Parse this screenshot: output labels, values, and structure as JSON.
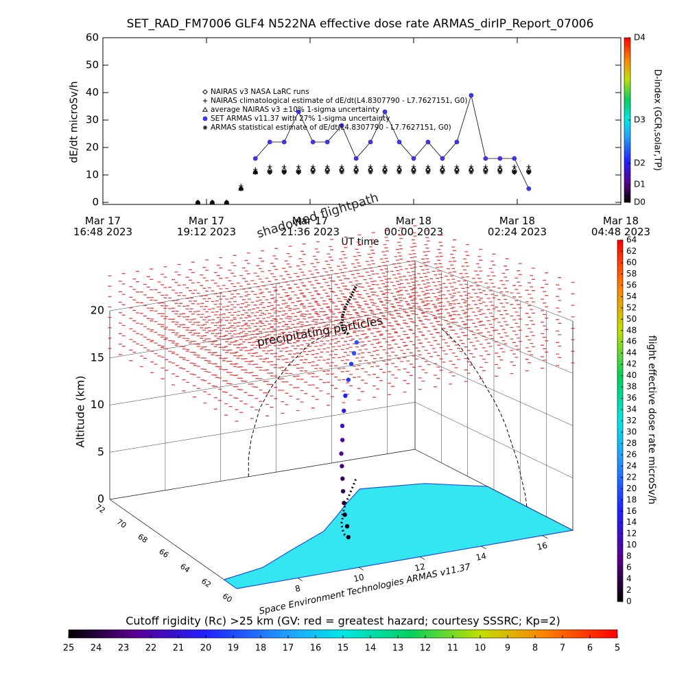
{
  "chart_data": [
    {
      "type": "scatter",
      "title": "SET_RAD_FM7006  GLF4 N522NA effective dose rate ARMAS_dirIP_Report_07006",
      "ylabel": "dE/dt microSv/h",
      "xlabel": "UT time",
      "x": [
        "2023-03-17T19:00",
        "2023-03-17T19:20",
        "2023-03-17T19:40",
        "2023-03-17T20:00",
        "2023-03-17T20:20",
        "2023-03-17T20:40",
        "2023-03-17T21:00",
        "2023-03-17T21:20",
        "2023-03-17T21:40",
        "2023-03-17T22:00",
        "2023-03-17T22:20",
        "2023-03-17T22:40",
        "2023-03-17T23:00",
        "2023-03-17T23:20",
        "2023-03-17T23:40",
        "2023-03-18T00:00",
        "2023-03-18T00:20",
        "2023-03-18T00:40",
        "2023-03-18T01:00",
        "2023-03-18T01:20",
        "2023-03-18T01:40",
        "2023-03-18T02:00",
        "2023-03-18T02:20",
        "2023-03-18T02:40"
      ],
      "xlim": [
        "2023-03-17T16:48",
        "2023-03-18T04:48"
      ],
      "xticks": [
        {
          "value": "2023-03-17T16:48",
          "label": "Mar 17\n16:48 2023"
        },
        {
          "value": "2023-03-17T19:12",
          "label": "Mar 17\n19:12 2023"
        },
        {
          "value": "2023-03-17T21:36",
          "label": "Mar 17\n21:36 2023"
        },
        {
          "value": "2023-03-18T00:00",
          "label": "Mar 18\n00:00 2023"
        },
        {
          "value": "2023-03-18T02:24",
          "label": "Mar 18\n02:24 2023"
        },
        {
          "value": "2023-03-18T04:48",
          "label": "Mar 18\n04:48 2023"
        }
      ],
      "ylim": [
        0,
        60
      ],
      "yticks": [
        0,
        10,
        20,
        30,
        40,
        50,
        60
      ],
      "series": [
        {
          "name": "NAIRAS v3 NASA LaRC runs",
          "color": "#000000",
          "marker": "diamond",
          "values": [
            0,
            0,
            0,
            5,
            11,
            11,
            11,
            11,
            12,
            12,
            12,
            12,
            12,
            12,
            12,
            12,
            12,
            12,
            12,
            12,
            12,
            12,
            11,
            11
          ]
        },
        {
          "name": "NAIRAS climatological estimate of dE/dt(L4.8307790 - L7.7627151, G0)",
          "color": "#000000",
          "marker": "plus",
          "values": [
            0,
            0,
            0,
            6,
            12,
            13,
            13,
            13,
            13,
            13,
            13,
            13,
            13,
            13,
            13,
            13,
            13,
            13,
            13,
            13,
            13,
            13,
            13,
            13
          ]
        },
        {
          "name": "average NAIRAS v3 ±10% 1-sigma uncertainty",
          "color": "#000000",
          "marker": "triangle",
          "values": [
            0,
            0,
            0,
            5,
            11,
            12,
            12,
            12,
            12,
            12,
            12,
            12,
            12,
            12,
            12,
            12,
            12,
            12,
            12,
            12,
            12,
            12,
            12,
            12
          ]
        },
        {
          "name": "SET ARMAS v11.37 with 27% 1-sigma uncertainty",
          "color": "#2c3cff",
          "marker": "circle",
          "values": [
            null,
            null,
            null,
            null,
            16,
            22,
            22,
            33,
            22,
            22,
            28,
            16,
            22,
            33,
            22,
            16,
            22,
            16,
            22,
            39,
            16,
            16,
            16,
            5
          ]
        },
        {
          "name": "ARMAS statistical estimate of dE/dt(L4.8307790 - L7.7627151, G0)",
          "color": "#000000",
          "marker": "asterisk",
          "values": [
            0,
            0,
            0,
            5,
            11,
            11,
            11,
            11,
            11,
            11,
            11,
            11,
            11,
            11,
            11,
            11,
            11,
            11,
            11,
            11,
            11,
            11,
            11,
            11
          ]
        }
      ],
      "dindex_colorbar": {
        "label": "D-index (GCR,solar,TP)",
        "lim": [
          0,
          4
        ],
        "ticks": [
          {
            "value": 0,
            "label": "D0"
          },
          {
            "value": 0.43,
            "label": "D1"
          },
          {
            "value": 0.95,
            "label": "D2"
          },
          {
            "value": 2,
            "label": "D3"
          },
          {
            "value": 4,
            "label": "D4"
          }
        ]
      }
    },
    {
      "type": "scatter3d",
      "zlabel": "Altitude (km)",
      "zlim": [
        0,
        20
      ],
      "zticks": [
        0,
        5,
        10,
        15,
        20
      ],
      "xlim": [
        6,
        17
      ],
      "xticks": [
        8,
        10,
        12,
        14,
        16
      ],
      "ylim": [
        60,
        72
      ],
      "yticks": [
        60,
        62,
        64,
        66,
        68,
        70,
        72
      ],
      "lon": [
        11.0,
        11.0,
        11.0,
        11.05,
        11.1,
        11.2,
        11.3,
        11.4,
        11.6,
        11.8,
        12.1,
        12.4,
        12.8,
        13.2,
        13.6,
        14.0
      ],
      "lat": [
        63.5,
        63.6,
        63.8,
        64.0,
        64.2,
        64.5,
        64.8,
        65.1,
        65.5,
        66.0,
        66.6,
        67.2,
        67.9,
        68.6,
        69.3,
        70.0
      ],
      "alt": [
        0,
        1,
        2,
        3,
        4,
        5,
        6,
        7,
        8,
        9,
        10,
        11,
        12,
        13,
        13.5,
        14
      ],
      "values": [
        1,
        1,
        2,
        3,
        4,
        5,
        6,
        8,
        10,
        12,
        14,
        16,
        18,
        18,
        20,
        20
      ],
      "color_label": "flight effective dose rate microSv/h",
      "clim": [
        0,
        64
      ],
      "cticks": [
        0,
        2,
        4,
        6,
        8,
        10,
        12,
        14,
        16,
        18,
        20,
        22,
        24,
        26,
        28,
        30,
        32,
        34,
        36,
        38,
        40,
        42,
        44,
        46,
        48,
        50,
        52,
        54,
        56,
        58,
        60,
        62,
        64
      ],
      "annotations": [
        "shadowed flightpath",
        "precipitating particles",
        "Space Environment Technologies ARMAS v11.37"
      ],
      "rigidity_colorbar": {
        "label": "Cutoff rigidity (Rc) >25 km (GV: red = greatest hazard; courtesy SSSRC; Kp=2)",
        "lim": [
          25,
          5
        ],
        "ticks": [
          25,
          24,
          23,
          22,
          21,
          20,
          19,
          18,
          17,
          16,
          15,
          14,
          13,
          12,
          11,
          10,
          9,
          8,
          7,
          6,
          5
        ]
      }
    }
  ]
}
